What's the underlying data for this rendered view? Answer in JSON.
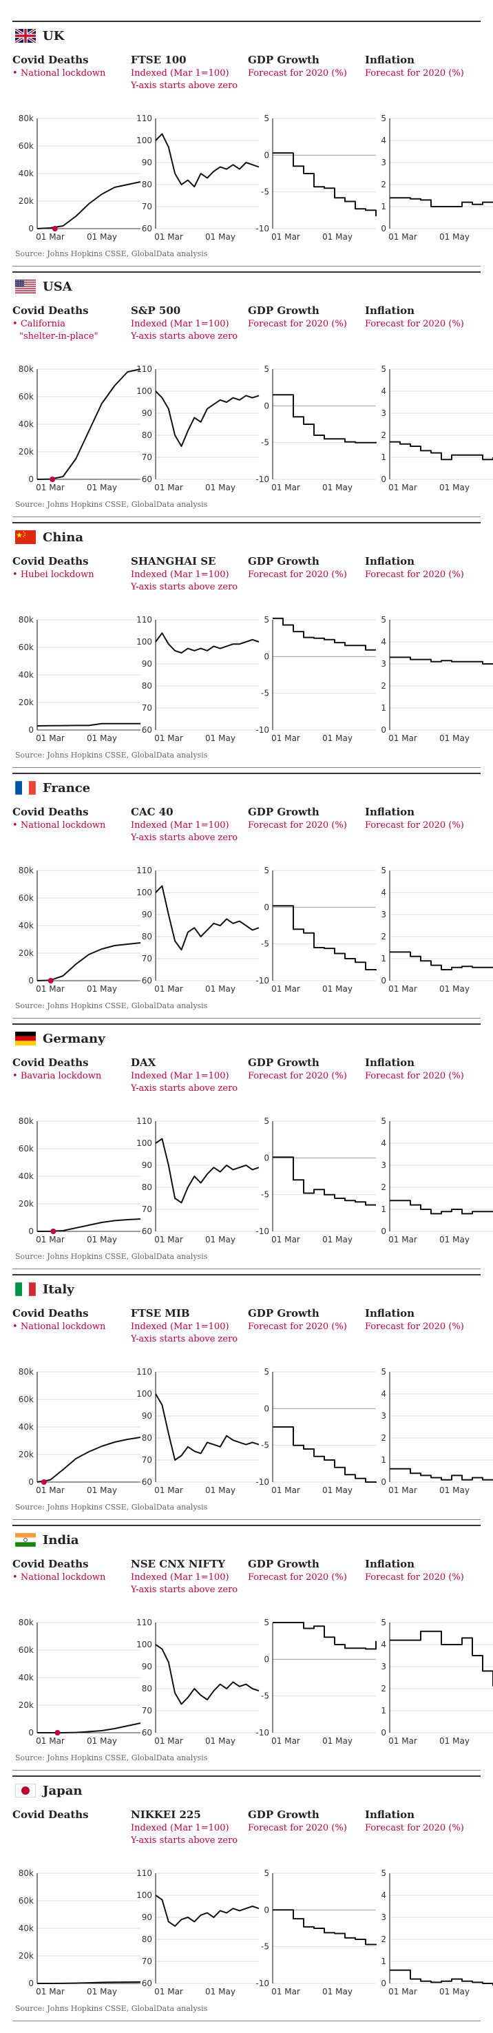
{
  "common": {
    "deaths_title": "Covid Deaths",
    "gdp_title": "GDP Growth",
    "gdp_sub": "Forecast for 2020 (%)",
    "inflation_title": "Inflation",
    "inflation_sub": "Forecast for 2020 (%)",
    "index_sub1": "Indexed (Mar 1=100)",
    "index_sub2": "Y-axis starts above zero",
    "source": "Source: Johns Hopkins CSSE, GlobalData analysis"
  },
  "countries": [
    {
      "name": "UK",
      "flag": "uk",
      "index_title": "FTSE 100",
      "annotation": [
        "National lockdown"
      ]
    },
    {
      "name": "USA",
      "flag": "usa",
      "index_title": "S&P 500",
      "annotation": [
        "California",
        "\"shelter-in-place\""
      ]
    },
    {
      "name": "China",
      "flag": "china",
      "index_title": "SHANGHAI SE",
      "annotation": [
        "Hubei lockdown"
      ]
    },
    {
      "name": "France",
      "flag": "france",
      "index_title": "CAC 40",
      "annotation": [
        "National lockdown"
      ]
    },
    {
      "name": "Germany",
      "flag": "germany",
      "index_title": "DAX",
      "annotation": [
        "Bavaria lockdown"
      ]
    },
    {
      "name": "Italy",
      "flag": "italy",
      "index_title": "FTSE MIB",
      "annotation": [
        "National lockdown"
      ]
    },
    {
      "name": "India",
      "flag": "india",
      "index_title": "NSE CNX NIFTY",
      "annotation": [
        "National lockdown"
      ]
    },
    {
      "name": "Japan",
      "flag": "japan",
      "index_title": "NIKKEI 225",
      "annotation": []
    }
  ],
  "colors": {
    "line": "#111111",
    "accent": "#c4003a",
    "grid": "#dddddd",
    "zero": "#aaaaaa",
    "axis": "#333333"
  },
  "chart_data": [
    {
      "type": "line",
      "country": "UK",
      "panel": "Covid Deaths",
      "x": [
        "01 Mar",
        "15 Mar",
        "01 Apr",
        "15 Apr",
        "01 May",
        "15 May",
        "01 Jun",
        "15 Jun",
        "01 Jul"
      ],
      "values": [
        0,
        500,
        2000,
        9000,
        18000,
        25000,
        30000,
        32000,
        34000
      ],
      "ylim": [
        0,
        80000
      ],
      "yticks": [
        "0",
        "20k",
        "40k",
        "60k",
        "80k"
      ],
      "xticks": [
        "01 Mar",
        "01 May"
      ],
      "marker_x": "22 Mar"
    },
    {
      "type": "line",
      "country": "UK",
      "panel": "FTSE 100",
      "values": [
        100,
        103,
        97,
        85,
        80,
        82,
        79,
        85,
        83,
        86,
        88,
        87,
        89,
        87,
        90,
        89,
        88
      ],
      "ylim": [
        60,
        110
      ],
      "yticks": [
        "60",
        "70",
        "80",
        "90",
        "100",
        "110"
      ],
      "xticks": [
        "01 Mar",
        "01 May"
      ]
    },
    {
      "type": "line",
      "country": "UK",
      "panel": "GDP Growth",
      "values": [
        0.3,
        0.3,
        -1.5,
        -2.5,
        -4.3,
        -4.5,
        -5.8,
        -6.3,
        -7.3,
        -7.5,
        -8.3
      ],
      "ylim": [
        -10,
        5
      ],
      "yticks": [
        "-10",
        "-5",
        "0",
        "5"
      ],
      "xticks": [
        "01 Mar",
        "01 May"
      ]
    },
    {
      "type": "line",
      "country": "UK",
      "panel": "Inflation",
      "values": [
        1.4,
        1.4,
        1.35,
        1.3,
        1.0,
        1.0,
        1.0,
        1.2,
        1.1,
        1.2,
        1.2
      ],
      "ylim": [
        0,
        5
      ],
      "yticks": [
        "0",
        "1",
        "2",
        "3",
        "4",
        "5"
      ],
      "xticks": [
        "01 Mar",
        "01 May"
      ]
    },
    {
      "type": "line",
      "country": "USA",
      "panel": "Covid Deaths",
      "values": [
        0,
        100,
        2000,
        15000,
        35000,
        55000,
        68000,
        78000,
        80000
      ],
      "ylim": [
        0,
        80000
      ],
      "yticks": [
        "0",
        "20k",
        "40k",
        "60k",
        "80k"
      ],
      "xticks": [
        "01 Mar",
        "01 May"
      ],
      "marker_x": "19 Mar"
    },
    {
      "type": "line",
      "country": "USA",
      "panel": "S&P 500",
      "values": [
        100,
        97,
        92,
        80,
        75,
        82,
        88,
        86,
        92,
        94,
        96,
        95,
        97,
        96,
        98,
        97,
        98
      ],
      "ylim": [
        60,
        110
      ],
      "yticks": [
        "60",
        "70",
        "80",
        "90",
        "100",
        "110"
      ],
      "xticks": [
        "01 Mar",
        "01 May"
      ]
    },
    {
      "type": "line",
      "country": "USA",
      "panel": "GDP Growth",
      "values": [
        1.5,
        1.5,
        -1.5,
        -2.5,
        -4.0,
        -4.5,
        -4.5,
        -4.9,
        -5.0,
        -5.0,
        -4.9
      ],
      "ylim": [
        -10,
        5
      ],
      "yticks": [
        "-10",
        "-5",
        "0",
        "5"
      ],
      "xticks": [
        "01 Mar",
        "01 May"
      ]
    },
    {
      "type": "line",
      "country": "USA",
      "panel": "Inflation",
      "values": [
        1.7,
        1.6,
        1.5,
        1.3,
        1.2,
        0.9,
        1.1,
        1.1,
        1.1,
        0.9,
        1.0
      ],
      "ylim": [
        0,
        5
      ],
      "yticks": [
        "0",
        "1",
        "2",
        "3",
        "4",
        "5"
      ],
      "xticks": [
        "01 Mar",
        "01 May"
      ]
    },
    {
      "type": "line",
      "country": "China",
      "panel": "Covid Deaths",
      "values": [
        3000,
        3100,
        3200,
        3300,
        3300,
        4600,
        4600,
        4600,
        4600
      ],
      "ylim": [
        0,
        80000
      ],
      "yticks": [
        "0",
        "20k",
        "40k",
        "60k",
        "80k"
      ],
      "xticks": [
        "01 Mar",
        "01 May"
      ]
    },
    {
      "type": "line",
      "country": "China",
      "panel": "SHANGHAI SE",
      "values": [
        100,
        104,
        99,
        96,
        95,
        97,
        96,
        97,
        96,
        98,
        97,
        98,
        99,
        99,
        100,
        101,
        100
      ],
      "ylim": [
        60,
        110
      ],
      "yticks": [
        "60",
        "70",
        "80",
        "90",
        "100",
        "110"
      ],
      "xticks": [
        "01 Mar",
        "01 May"
      ]
    },
    {
      "type": "line",
      "country": "China",
      "panel": "GDP Growth",
      "values": [
        5.2,
        4.3,
        3.4,
        2.6,
        2.5,
        2.3,
        1.9,
        1.5,
        1.5,
        0.9,
        0.9
      ],
      "ylim": [
        -10,
        5
      ],
      "yticks": [
        "-10",
        "-5",
        "0",
        "5"
      ],
      "xticks": [
        "01 Mar",
        "01 May"
      ]
    },
    {
      "type": "line",
      "country": "China",
      "panel": "Inflation",
      "values": [
        3.3,
        3.3,
        3.2,
        3.2,
        3.1,
        3.15,
        3.1,
        3.1,
        3.1,
        3.0,
        3.0
      ],
      "ylim": [
        0,
        5
      ],
      "yticks": [
        "0",
        "1",
        "2",
        "3",
        "4",
        "5"
      ],
      "xticks": [
        "01 Mar",
        "01 May"
      ]
    },
    {
      "type": "line",
      "country": "France",
      "panel": "Covid Deaths",
      "values": [
        0,
        300,
        3500,
        12000,
        19000,
        23000,
        25500,
        26500,
        27500
      ],
      "ylim": [
        0,
        80000
      ],
      "yticks": [
        "0",
        "20k",
        "40k",
        "60k",
        "80k"
      ],
      "xticks": [
        "01 Mar",
        "01 May"
      ],
      "marker_x": "17 Mar"
    },
    {
      "type": "line",
      "country": "France",
      "panel": "CAC 40",
      "values": [
        100,
        103,
        90,
        78,
        74,
        82,
        84,
        80,
        83,
        86,
        85,
        88,
        86,
        87,
        85,
        83,
        84
      ],
      "ylim": [
        60,
        110
      ],
      "yticks": [
        "60",
        "70",
        "80",
        "90",
        "100",
        "110"
      ],
      "xticks": [
        "01 Mar",
        "01 May"
      ]
    },
    {
      "type": "line",
      "country": "France",
      "panel": "GDP Growth",
      "values": [
        0.2,
        0.2,
        -3.0,
        -3.5,
        -5.5,
        -5.6,
        -6.3,
        -7.0,
        -7.5,
        -8.5,
        -8.6
      ],
      "ylim": [
        -10,
        5
      ],
      "yticks": [
        "-10",
        "-5",
        "0",
        "5"
      ],
      "xticks": [
        "01 Mar",
        "01 May"
      ]
    },
    {
      "type": "line",
      "country": "France",
      "panel": "Inflation",
      "values": [
        1.3,
        1.3,
        1.1,
        0.9,
        0.7,
        0.5,
        0.6,
        0.65,
        0.6,
        0.6,
        0.6
      ],
      "ylim": [
        0,
        5
      ],
      "yticks": [
        "0",
        "1",
        "2",
        "3",
        "4",
        "5"
      ],
      "xticks": [
        "01 Mar",
        "01 May"
      ]
    },
    {
      "type": "line",
      "country": "Germany",
      "panel": "Covid Deaths",
      "values": [
        0,
        50,
        500,
        2500,
        4500,
        6500,
        7800,
        8500,
        9000
      ],
      "ylim": [
        0,
        80000
      ],
      "yticks": [
        "0",
        "20k",
        "40k",
        "60k",
        "80k"
      ],
      "xticks": [
        "01 Mar",
        "01 May"
      ],
      "marker_x": "20 Mar"
    },
    {
      "type": "line",
      "country": "Germany",
      "panel": "DAX",
      "values": [
        100,
        102,
        90,
        75,
        73,
        80,
        85,
        82,
        86,
        89,
        87,
        90,
        88,
        89,
        90,
        88,
        89
      ],
      "ylim": [
        60,
        110
      ],
      "yticks": [
        "60",
        "70",
        "80",
        "90",
        "100",
        "110"
      ],
      "xticks": [
        "01 Mar",
        "01 May"
      ]
    },
    {
      "type": "line",
      "country": "Germany",
      "panel": "GDP Growth",
      "values": [
        0.1,
        0.1,
        -3.0,
        -4.8,
        -4.3,
        -5.0,
        -5.5,
        -5.8,
        -6.0,
        -6.4,
        -6.4
      ],
      "ylim": [
        -10,
        5
      ],
      "yticks": [
        "-10",
        "-5",
        "0",
        "5"
      ],
      "xticks": [
        "01 Mar",
        "01 May"
      ]
    },
    {
      "type": "line",
      "country": "Germany",
      "panel": "Inflation",
      "values": [
        1.4,
        1.4,
        1.2,
        1.0,
        0.8,
        0.9,
        1.0,
        0.8,
        0.9,
        0.9,
        0.9
      ],
      "ylim": [
        0,
        5
      ],
      "yticks": [
        "0",
        "1",
        "2",
        "3",
        "4",
        "5"
      ],
      "xticks": [
        "01 Mar",
        "01 May"
      ]
    },
    {
      "type": "line",
      "country": "Italy",
      "panel": "Covid Deaths",
      "values": [
        0,
        1500,
        9000,
        17000,
        22000,
        26000,
        29000,
        31000,
        32500
      ],
      "ylim": [
        0,
        80000
      ],
      "yticks": [
        "0",
        "20k",
        "40k",
        "60k",
        "80k"
      ],
      "xticks": [
        "01 Mar",
        "01 May"
      ],
      "marker_x": "09 Mar"
    },
    {
      "type": "line",
      "country": "Italy",
      "panel": "FTSE MIB",
      "values": [
        100,
        95,
        82,
        70,
        72,
        76,
        74,
        73,
        78,
        77,
        76,
        81,
        79,
        78,
        77,
        78,
        77
      ],
      "ylim": [
        60,
        110
      ],
      "yticks": [
        "60",
        "70",
        "80",
        "90",
        "100",
        "110"
      ],
      "xticks": [
        "01 Mar",
        "01 May"
      ]
    },
    {
      "type": "line",
      "country": "Italy",
      "panel": "GDP Growth",
      "values": [
        -2.5,
        -2.5,
        -5.0,
        -5.5,
        -6.5,
        -7.0,
        -8.0,
        -9.0,
        -9.5,
        -10.0,
        -10.1
      ],
      "ylim": [
        -10,
        5
      ],
      "yticks": [
        "-10",
        "-5",
        "0",
        "5"
      ],
      "xticks": [
        "01 Mar",
        "01 May"
      ]
    },
    {
      "type": "line",
      "country": "Italy",
      "panel": "Inflation",
      "values": [
        0.6,
        0.6,
        0.4,
        0.3,
        0.2,
        0.1,
        0.3,
        0.1,
        0.2,
        0.1,
        0.1
      ],
      "ylim": [
        0,
        5
      ],
      "yticks": [
        "0",
        "1",
        "2",
        "3",
        "4",
        "5"
      ],
      "xticks": [
        "01 Mar",
        "01 May"
      ]
    },
    {
      "type": "line",
      "country": "India",
      "panel": "Covid Deaths",
      "values": [
        0,
        0,
        10,
        200,
        800,
        1500,
        3000,
        5000,
        7000
      ],
      "ylim": [
        0,
        80000
      ],
      "yticks": [
        "0",
        "20k",
        "40k",
        "60k",
        "80k"
      ],
      "xticks": [
        "01 Mar",
        "01 May"
      ],
      "marker_x": "25 Mar"
    },
    {
      "type": "line",
      "country": "India",
      "panel": "NSE CNX NIFTY",
      "values": [
        100,
        98,
        92,
        78,
        73,
        76,
        80,
        77,
        75,
        79,
        82,
        80,
        83,
        81,
        82,
        80,
        79
      ],
      "ylim": [
        60,
        110
      ],
      "yticks": [
        "60",
        "70",
        "80",
        "90",
        "100",
        "110"
      ],
      "xticks": [
        "01 Mar",
        "01 May"
      ]
    },
    {
      "type": "line",
      "country": "India",
      "panel": "GDP Growth",
      "values": [
        5.0,
        5.0,
        5.0,
        4.2,
        4.5,
        3.0,
        2.0,
        1.5,
        1.5,
        1.4,
        2.5
      ],
      "ylim": [
        -10,
        5
      ],
      "yticks": [
        "-10",
        "-5",
        "0",
        "5"
      ],
      "xticks": [
        "01 Mar",
        "01 May"
      ]
    },
    {
      "type": "line",
      "country": "India",
      "panel": "Inflation",
      "values": [
        4.2,
        4.2,
        4.2,
        4.6,
        4.6,
        4.0,
        4.0,
        4.3,
        3.5,
        2.8,
        2.1
      ],
      "ylim": [
        0,
        5
      ],
      "yticks": [
        "0",
        "1",
        "2",
        "3",
        "4",
        "5"
      ],
      "xticks": [
        "01 Mar",
        "01 May"
      ]
    },
    {
      "type": "line",
      "country": "Japan",
      "panel": "Covid Deaths",
      "values": [
        0,
        20,
        60,
        200,
        450,
        750,
        900,
        950,
        980
      ],
      "ylim": [
        0,
        80000
      ],
      "yticks": [
        "0",
        "20k",
        "40k",
        "60k",
        "80k"
      ],
      "xticks": [
        "01 Mar",
        "01 May"
      ]
    },
    {
      "type": "line",
      "country": "Japan",
      "panel": "NIKKEI 225",
      "values": [
        100,
        98,
        88,
        86,
        89,
        90,
        88,
        91,
        92,
        90,
        93,
        92,
        94,
        93,
        94,
        95,
        94
      ],
      "ylim": [
        60,
        110
      ],
      "yticks": [
        "60",
        "70",
        "80",
        "90",
        "100",
        "110"
      ],
      "xticks": [
        "01 Mar",
        "01 May"
      ]
    },
    {
      "type": "line",
      "country": "Japan",
      "panel": "GDP Growth",
      "values": [
        0.0,
        0.0,
        -1.2,
        -2.3,
        -2.5,
        -3.1,
        -3.2,
        -3.8,
        -4.0,
        -4.7,
        -4.8
      ],
      "ylim": [
        -10,
        5
      ],
      "yticks": [
        "-10",
        "-5",
        "0",
        "5"
      ],
      "xticks": [
        "01 Mar",
        "01 May"
      ]
    },
    {
      "type": "line",
      "country": "Japan",
      "panel": "Inflation",
      "values": [
        0.6,
        0.6,
        0.2,
        0.1,
        0.05,
        0.1,
        0.2,
        0.1,
        0.05,
        0.0,
        -0.1
      ],
      "ylim": [
        0,
        5
      ],
      "yticks": [
        "0",
        "1",
        "2",
        "3",
        "4",
        "5"
      ],
      "xticks": [
        "01 Mar",
        "01 May"
      ]
    }
  ]
}
